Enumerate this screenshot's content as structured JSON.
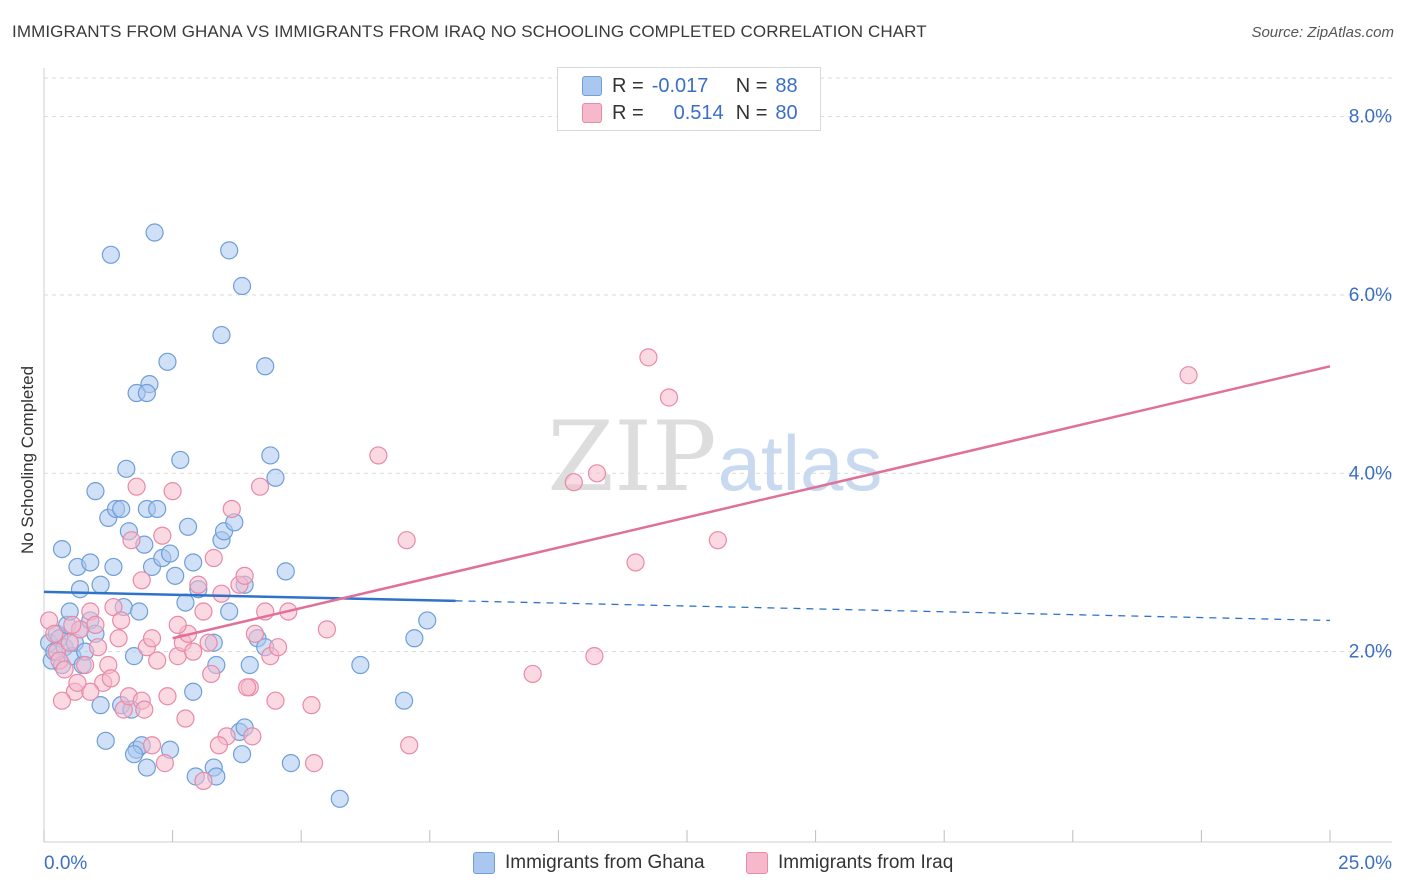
{
  "title": "IMMIGRANTS FROM GHANA VS IMMIGRANTS FROM IRAQ NO SCHOOLING COMPLETED CORRELATION CHART",
  "source": "Source: ZipAtlas.com",
  "watermark": {
    "zip": "ZIP",
    "atlas": "atlas"
  },
  "legend": {
    "row1": {
      "r_label": "R =",
      "r_value": "-0.017",
      "n_label": "N =",
      "n_value": "88"
    },
    "row2": {
      "r_label": "R =",
      "r_value": "0.514",
      "n_label": "N =",
      "n_value": "80"
    }
  },
  "colors": {
    "ghana_fill": "#a9c7ef",
    "ghana_stroke": "#6f9fd8",
    "ghana_line": "#2f73c9",
    "iraq_fill": "#f6b9cc",
    "iraq_stroke": "#e88aa8",
    "iraq_line": "#e07099",
    "tick_label": "#3b6fc4",
    "grid": "#d9d9d9"
  },
  "chart_data": {
    "type": "scatter",
    "title": "IMMIGRANTS FROM GHANA VS IMMIGRANTS FROM IRAQ NO SCHOOLING COMPLETED CORRELATION CHART",
    "xlabel": "",
    "ylabel": "No Schooling Completed",
    "xlim": [
      0,
      25
    ],
    "ylim": [
      0,
      8.5
    ],
    "x_tick_labels": [
      "0.0%",
      "25.0%"
    ],
    "y_tick_labels": [
      "2.0%",
      "4.0%",
      "6.0%",
      "8.0%"
    ],
    "y_ticks": [
      2,
      4,
      6,
      8
    ],
    "grid": true,
    "legend_position": "top-center",
    "series": [
      {
        "name": "Immigrants from Ghana",
        "r": -0.017,
        "n": 88,
        "trend": {
          "x": [
            0,
            8
          ],
          "y": [
            2.67,
            2.57
          ],
          "dashed_to": [
            25,
            2.35
          ]
        },
        "points": [
          [
            0.1,
            2.1
          ],
          [
            0.15,
            1.9
          ],
          [
            0.2,
            2.0
          ],
          [
            0.25,
            2.2
          ],
          [
            0.3,
            2.15
          ],
          [
            0.35,
            1.85
          ],
          [
            0.4,
            2.05
          ],
          [
            0.45,
            2.3
          ],
          [
            0.5,
            2.45
          ],
          [
            0.55,
            1.95
          ],
          [
            0.6,
            2.1
          ],
          [
            0.7,
            2.25
          ],
          [
            0.75,
            1.85
          ],
          [
            0.8,
            2.0
          ],
          [
            0.9,
            2.35
          ],
          [
            1.0,
            2.2
          ],
          [
            0.35,
            3.15
          ],
          [
            0.65,
            2.95
          ],
          [
            0.7,
            2.7
          ],
          [
            0.9,
            3.0
          ],
          [
            1.0,
            3.8
          ],
          [
            1.1,
            2.75
          ],
          [
            1.25,
            3.5
          ],
          [
            1.35,
            2.95
          ],
          [
            1.4,
            3.6
          ],
          [
            1.5,
            3.6
          ],
          [
            1.55,
            2.5
          ],
          [
            1.6,
            4.05
          ],
          [
            1.65,
            3.35
          ],
          [
            1.75,
            1.95
          ],
          [
            1.85,
            2.45
          ],
          [
            1.95,
            3.2
          ],
          [
            2.0,
            3.6
          ],
          [
            2.1,
            2.95
          ],
          [
            2.2,
            3.6
          ],
          [
            2.3,
            3.05
          ],
          [
            2.45,
            3.1
          ],
          [
            2.55,
            2.85
          ],
          [
            2.65,
            4.15
          ],
          [
            2.75,
            2.55
          ],
          [
            2.8,
            3.4
          ],
          [
            2.9,
            3.0
          ],
          [
            3.0,
            2.7
          ],
          [
            3.3,
            2.1
          ],
          [
            3.35,
            1.85
          ],
          [
            3.45,
            3.25
          ],
          [
            3.5,
            3.35
          ],
          [
            3.6,
            2.45
          ],
          [
            3.7,
            3.45
          ],
          [
            3.9,
            2.75
          ],
          [
            4.0,
            1.85
          ],
          [
            4.15,
            2.15
          ],
          [
            4.3,
            2.05
          ],
          [
            4.4,
            4.2
          ],
          [
            4.5,
            3.95
          ],
          [
            4.7,
            2.9
          ],
          [
            1.3,
            6.45
          ],
          [
            2.15,
            6.7
          ],
          [
            3.6,
            6.5
          ],
          [
            3.85,
            6.1
          ],
          [
            3.45,
            5.55
          ],
          [
            4.3,
            5.2
          ],
          [
            2.4,
            5.25
          ],
          [
            2.05,
            5.0
          ],
          [
            1.8,
            4.9
          ],
          [
            2.0,
            4.9
          ],
          [
            1.1,
            1.4
          ],
          [
            1.2,
            1.0
          ],
          [
            1.5,
            1.4
          ],
          [
            1.7,
            1.35
          ],
          [
            1.8,
            0.9
          ],
          [
            1.9,
            0.95
          ],
          [
            2.0,
            0.7
          ],
          [
            2.45,
            0.9
          ],
          [
            2.9,
            1.55
          ],
          [
            2.95,
            0.6
          ],
          [
            3.3,
            0.7
          ],
          [
            3.35,
            0.6
          ],
          [
            3.8,
            1.1
          ],
          [
            3.85,
            0.85
          ],
          [
            3.9,
            1.15
          ],
          [
            4.8,
            0.75
          ],
          [
            5.75,
            0.35
          ],
          [
            6.15,
            1.85
          ],
          [
            7.0,
            1.45
          ],
          [
            7.2,
            2.15
          ],
          [
            7.45,
            2.35
          ],
          [
            1.75,
            0.85
          ]
        ]
      },
      {
        "name": "Immigrants from Iraq",
        "r": 0.514,
        "n": 80,
        "trend": {
          "x": [
            2.5,
            25
          ],
          "y": [
            2.15,
            5.2
          ]
        },
        "points": [
          [
            0.1,
            2.35
          ],
          [
            0.2,
            2.2
          ],
          [
            0.25,
            2.0
          ],
          [
            0.3,
            1.9
          ],
          [
            0.4,
            1.8
          ],
          [
            0.5,
            2.1
          ],
          [
            0.6,
            1.55
          ],
          [
            0.7,
            2.25
          ],
          [
            0.8,
            1.85
          ],
          [
            0.9,
            2.45
          ],
          [
            1.0,
            2.3
          ],
          [
            1.05,
            2.05
          ],
          [
            1.15,
            1.65
          ],
          [
            1.25,
            1.85
          ],
          [
            1.35,
            2.5
          ],
          [
            1.45,
            2.15
          ],
          [
            1.55,
            1.35
          ],
          [
            1.65,
            1.5
          ],
          [
            1.7,
            3.25
          ],
          [
            1.8,
            3.85
          ],
          [
            1.9,
            2.8
          ],
          [
            2.0,
            2.05
          ],
          [
            2.1,
            2.15
          ],
          [
            2.2,
            1.9
          ],
          [
            2.3,
            3.3
          ],
          [
            2.4,
            1.5
          ],
          [
            2.5,
            3.8
          ],
          [
            2.6,
            1.95
          ],
          [
            2.7,
            2.1
          ],
          [
            2.8,
            2.2
          ],
          [
            2.9,
            2.0
          ],
          [
            3.0,
            2.75
          ],
          [
            3.1,
            2.45
          ],
          [
            3.2,
            2.1
          ],
          [
            3.3,
            3.05
          ],
          [
            3.45,
            2.65
          ],
          [
            3.55,
            1.05
          ],
          [
            3.65,
            3.6
          ],
          [
            3.8,
            2.75
          ],
          [
            3.9,
            2.85
          ],
          [
            4.0,
            1.6
          ],
          [
            4.1,
            2.2
          ],
          [
            4.2,
            3.85
          ],
          [
            4.3,
            2.45
          ],
          [
            4.4,
            1.95
          ],
          [
            4.5,
            1.45
          ],
          [
            4.75,
            2.45
          ],
          [
            5.2,
            1.4
          ],
          [
            5.25,
            0.75
          ],
          [
            5.5,
            2.25
          ],
          [
            6.5,
            4.2
          ],
          [
            7.05,
            3.25
          ],
          [
            7.1,
            0.95
          ],
          [
            9.5,
            1.75
          ],
          [
            10.3,
            3.9
          ],
          [
            10.7,
            1.95
          ],
          [
            10.75,
            4.0
          ],
          [
            11.5,
            3.0
          ],
          [
            11.75,
            5.3
          ],
          [
            12.15,
            4.85
          ],
          [
            13.1,
            3.25
          ],
          [
            22.25,
            5.1
          ],
          [
            0.9,
            1.55
          ],
          [
            1.3,
            1.7
          ],
          [
            1.9,
            1.45
          ],
          [
            2.1,
            0.95
          ],
          [
            2.35,
            0.75
          ],
          [
            3.1,
            0.55
          ],
          [
            3.4,
            0.95
          ],
          [
            3.95,
            1.6
          ],
          [
            4.55,
            2.05
          ],
          [
            1.5,
            2.35
          ],
          [
            0.55,
            2.3
          ],
          [
            0.65,
            1.65
          ],
          [
            2.75,
            1.25
          ],
          [
            3.25,
            1.75
          ],
          [
            1.95,
            1.35
          ],
          [
            2.6,
            2.3
          ],
          [
            0.35,
            1.45
          ],
          [
            4.05,
            1.05
          ]
        ]
      }
    ]
  },
  "bottom_legend": {
    "ghana": "Immigrants from Ghana",
    "iraq": "Immigrants from Iraq"
  }
}
